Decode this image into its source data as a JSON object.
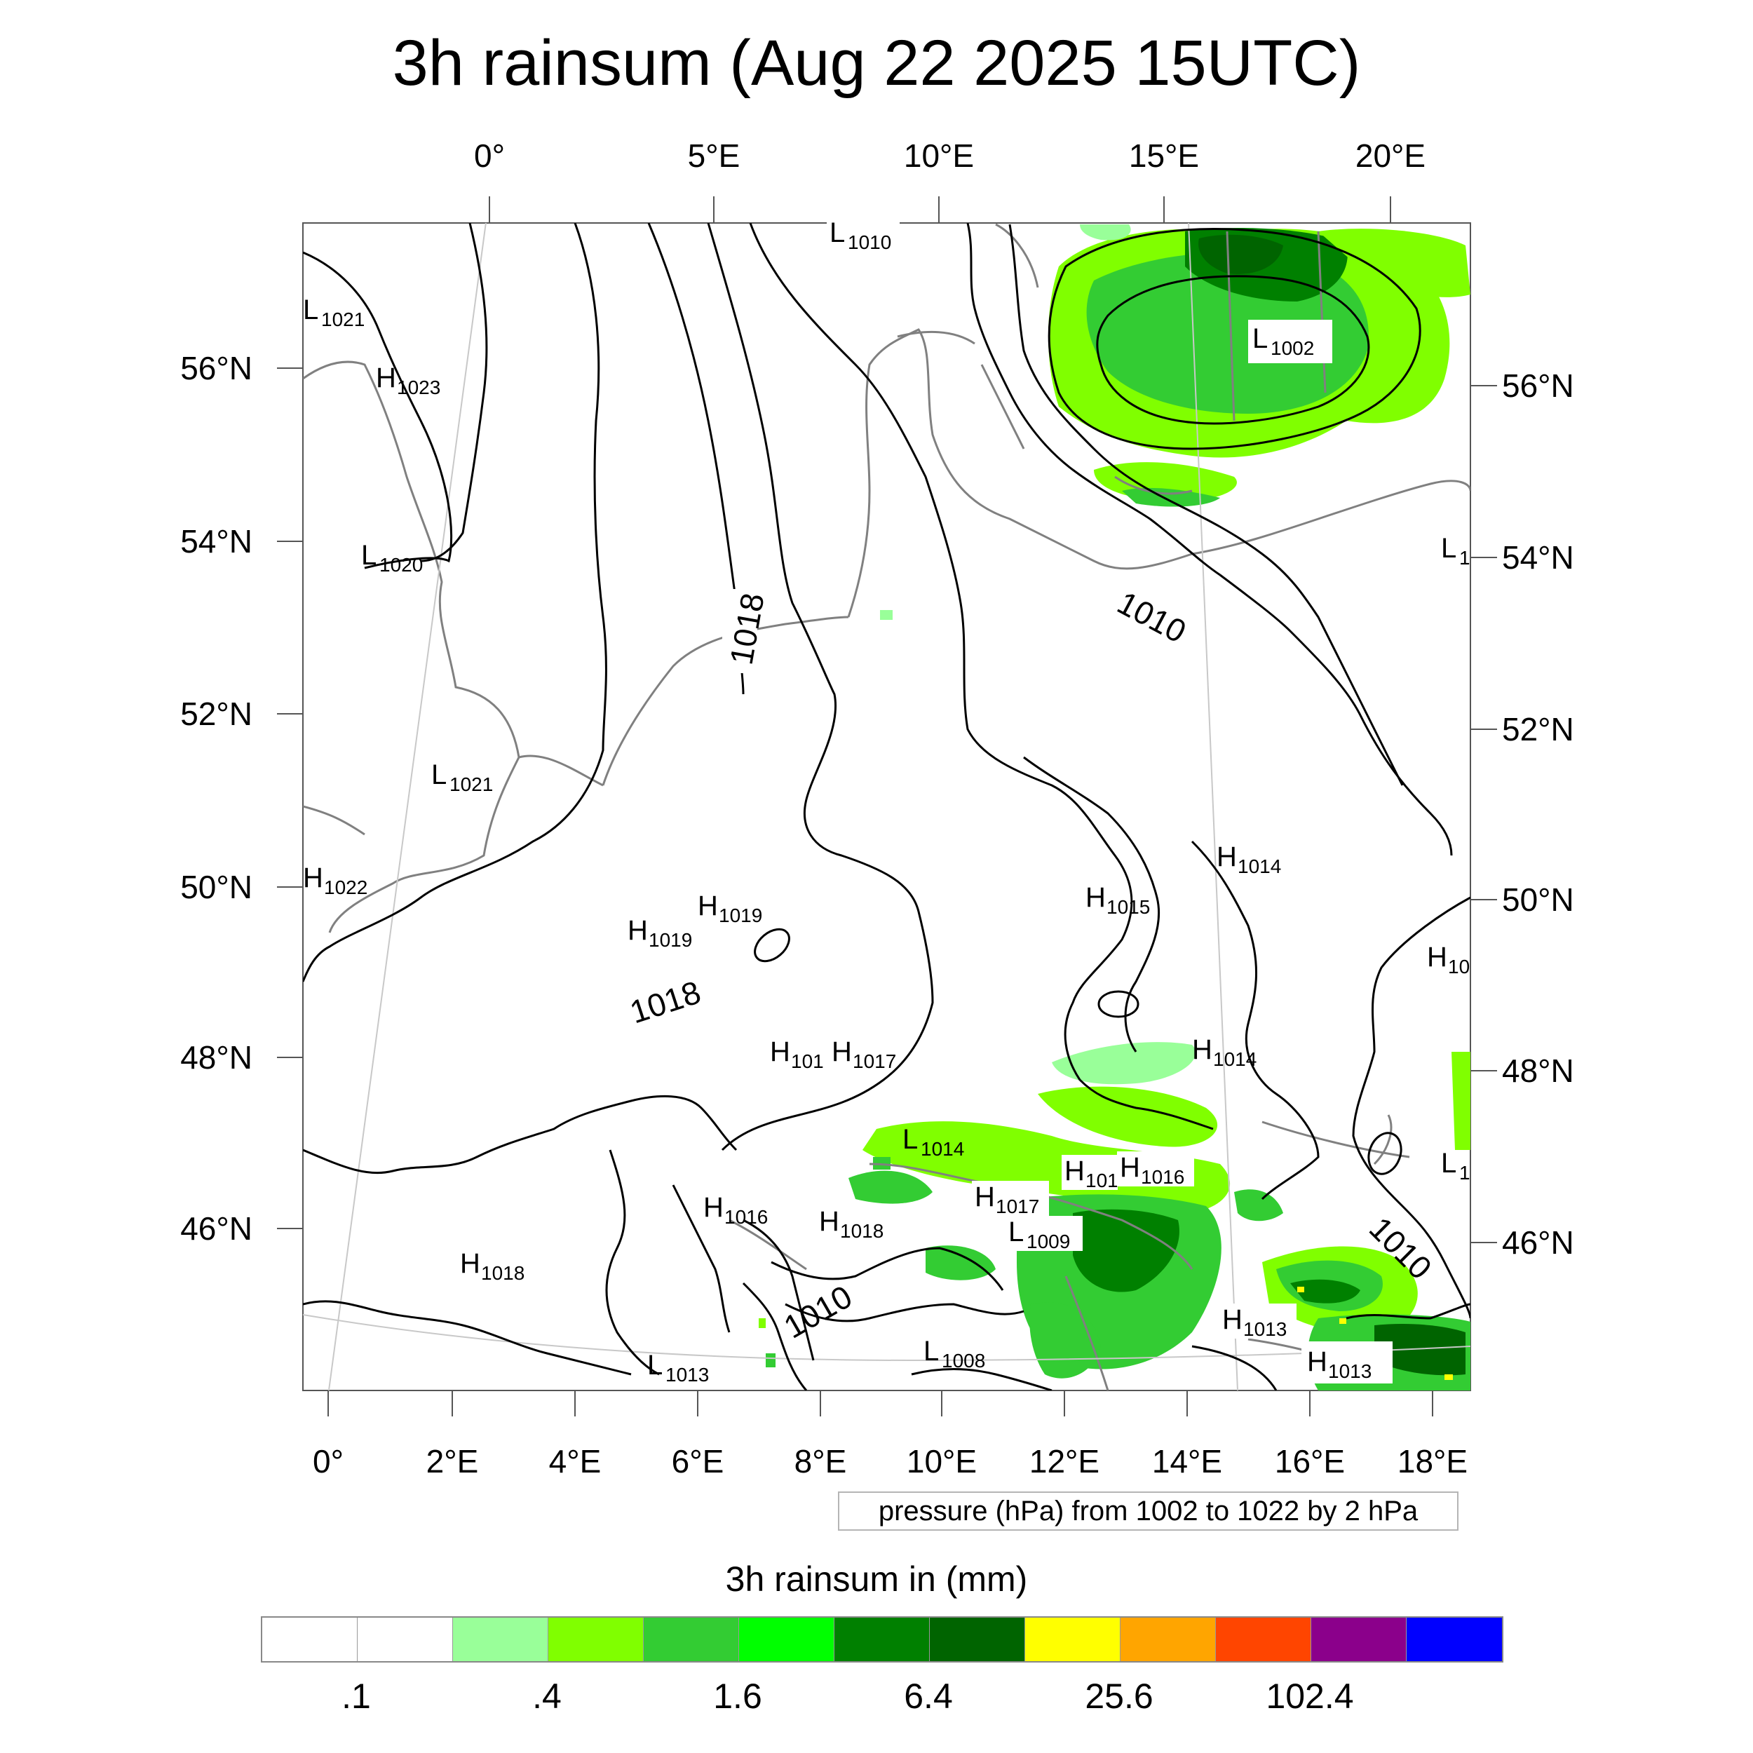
{
  "title": "3h rainsum (Aug 22 2025 15UTC)",
  "map": {
    "top_lon_ticks": [
      "0°",
      "5°E",
      "10°E",
      "15°E",
      "20°E"
    ],
    "bottom_lon_ticks": [
      "0°",
      "2°E",
      "4°E",
      "6°E",
      "8°E",
      "10°E",
      "12°E",
      "14°E",
      "16°E",
      "18°E"
    ],
    "left_lat_ticks": [
      "56°N",
      "54°N",
      "52°N",
      "50°N",
      "48°N",
      "46°N"
    ],
    "right_lat_ticks": [
      "56°N",
      "54°N",
      "52°N",
      "50°N",
      "48°N",
      "46°N"
    ],
    "isobar_labels": [
      "1018",
      "1018",
      "1010",
      "1010",
      "1010"
    ],
    "pressure_centers": [
      {
        "type": "L",
        "value": "1010"
      },
      {
        "type": "L",
        "value": "1021"
      },
      {
        "type": "H",
        "value": "1023"
      },
      {
        "type": "L",
        "value": "1002"
      },
      {
        "type": "L",
        "value": "1020"
      },
      {
        "type": "L",
        "value": "1"
      },
      {
        "type": "L",
        "value": "1021"
      },
      {
        "type": "H",
        "value": "1022"
      },
      {
        "type": "H",
        "value": "1014"
      },
      {
        "type": "H",
        "value": "1015"
      },
      {
        "type": "H",
        "value": "1019"
      },
      {
        "type": "H",
        "value": "1019"
      },
      {
        "type": "H",
        "value": "10"
      },
      {
        "type": "H",
        "value": "101"
      },
      {
        "type": "H",
        "value": "1017"
      },
      {
        "type": "H",
        "value": "1014"
      },
      {
        "type": "L",
        "value": "1014"
      },
      {
        "type": "H",
        "value": "101"
      },
      {
        "type": "H",
        "value": "1016"
      },
      {
        "type": "L",
        "value": "1"
      },
      {
        "type": "H",
        "value": "1016"
      },
      {
        "type": "H",
        "value": "1017"
      },
      {
        "type": "H",
        "value": "1018"
      },
      {
        "type": "L",
        "value": "1009"
      },
      {
        "type": "H",
        "value": "1018"
      },
      {
        "type": "H",
        "value": "1013"
      },
      {
        "type": "H",
        "value": "1013"
      },
      {
        "type": "L",
        "value": "1008"
      },
      {
        "type": "L",
        "value": "1013"
      }
    ]
  },
  "pressure_note": "pressure (hPa) from 1002 to 1022 by 2 hPa",
  "colorbar": {
    "title": "3h rainsum in (mm)",
    "colors": [
      "#ffffff",
      "#ffffff",
      "#99ff99",
      "#80ff00",
      "#33cc33",
      "#00ff00",
      "#008000",
      "#006400",
      "#ffff00",
      "#ffa500",
      "#ff4500",
      "#8b008b",
      "#0000ff"
    ],
    "labels": [
      ".1",
      ".4",
      "1.6",
      "6.4",
      "25.6",
      "102.4"
    ]
  }
}
